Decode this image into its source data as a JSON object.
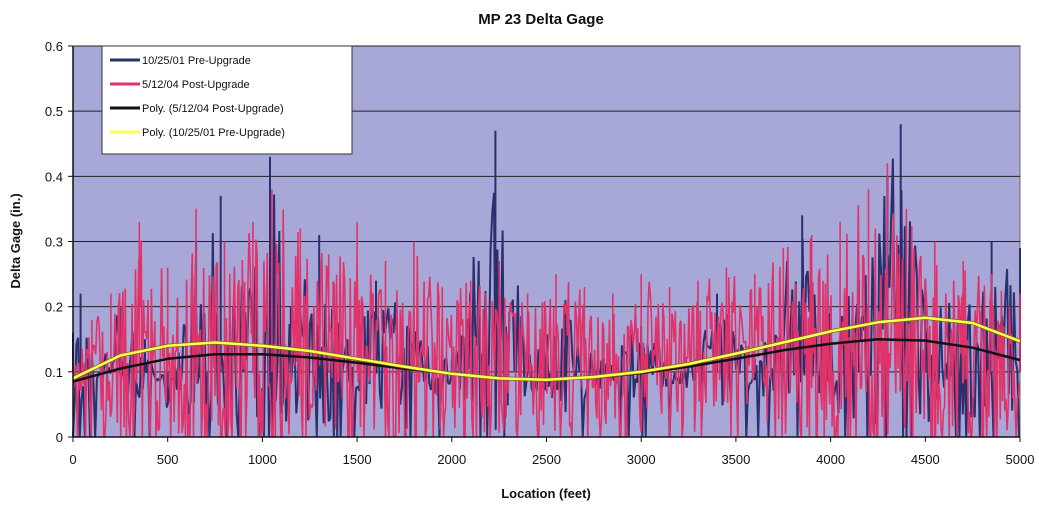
{
  "chart_data": {
    "type": "line",
    "title": "MP 23 Delta Gage",
    "xlabel": "Location (feet)",
    "ylabel": "Delta Gage (in.)",
    "xlim": [
      0,
      5000
    ],
    "ylim": [
      0,
      0.6
    ],
    "x_ticks": [
      "0",
      "500",
      "1000",
      "1500",
      "2000",
      "2500",
      "3000",
      "3500",
      "4000",
      "4500",
      "5000"
    ],
    "y_ticks": [
      "0",
      "0.1",
      "0.2",
      "0.3",
      "0.4",
      "0.5",
      "0.6"
    ],
    "grid": true,
    "legend_position": "top-left",
    "plot_background": "#a8a8d8",
    "series": [
      {
        "name": "10/25/01 Pre-Upgrade",
        "color": "#2a2f6e",
        "style": "raw",
        "x": [
          0,
          40,
          120,
          250,
          380,
          500,
          650,
          780,
          900,
          1040,
          1150,
          1300,
          1450,
          1600,
          1800,
          2000,
          2230,
          2400,
          2600,
          2800,
          3000,
          3200,
          3400,
          3600,
          3850,
          4000,
          4150,
          4300,
          4370,
          4500,
          4700,
          4850,
          5000
        ],
        "y": [
          0.16,
          0.22,
          0.1,
          0.2,
          0.15,
          0.05,
          0.3,
          0.37,
          0.22,
          0.43,
          0.2,
          0.31,
          0.15,
          0.24,
          0.18,
          0.12,
          0.47,
          0.14,
          0.21,
          0.12,
          0.17,
          0.1,
          0.22,
          0.12,
          0.34,
          0.2,
          0.24,
          0.4,
          0.48,
          0.24,
          0.22,
          0.3,
          0.29
        ]
      },
      {
        "name": "5/12/04 Post-Upgrade",
        "color": "#e0336a",
        "style": "raw",
        "x": [
          0,
          100,
          200,
          350,
          500,
          650,
          800,
          950,
          1050,
          1200,
          1350,
          1500,
          1650,
          1800,
          1950,
          2100,
          2250,
          2400,
          2550,
          2700,
          2850,
          3000,
          3150,
          3300,
          3450,
          3600,
          3750,
          3900,
          4050,
          4200,
          4300,
          4400,
          4550,
          4700,
          4850,
          5000
        ],
        "y": [
          0.12,
          0.18,
          0.22,
          0.33,
          0.26,
          0.35,
          0.3,
          0.33,
          0.38,
          0.32,
          0.28,
          0.33,
          0.27,
          0.3,
          0.23,
          0.24,
          0.27,
          0.22,
          0.25,
          0.23,
          0.22,
          0.25,
          0.23,
          0.24,
          0.26,
          0.25,
          0.29,
          0.31,
          0.33,
          0.38,
          0.42,
          0.35,
          0.3,
          0.27,
          0.25,
          0.22
        ]
      },
      {
        "name": "Poly. (5/12/04 Post-Upgrade)",
        "color": "#111111",
        "style": "trend",
        "x": [
          0,
          250,
          500,
          750,
          1000,
          1250,
          1500,
          1750,
          2000,
          2250,
          2500,
          2750,
          3000,
          3250,
          3500,
          3750,
          4000,
          4250,
          4500,
          4750,
          5000
        ],
        "y": [
          0.085,
          0.105,
          0.12,
          0.127,
          0.127,
          0.122,
          0.114,
          0.105,
          0.097,
          0.091,
          0.089,
          0.091,
          0.098,
          0.108,
          0.12,
          0.133,
          0.143,
          0.15,
          0.148,
          0.137,
          0.118
        ]
      },
      {
        "name": "Poly. (10/25/01 Pre-Upgrade)",
        "color": "#ffff55",
        "style": "trend",
        "x": [
          0,
          250,
          500,
          750,
          1000,
          1250,
          1500,
          1750,
          2000,
          2250,
          2500,
          2750,
          3000,
          3250,
          3500,
          3750,
          4000,
          4250,
          4500,
          4750,
          5000
        ],
        "y": [
          0.09,
          0.125,
          0.14,
          0.145,
          0.14,
          0.132,
          0.12,
          0.108,
          0.097,
          0.09,
          0.088,
          0.092,
          0.1,
          0.112,
          0.128,
          0.145,
          0.162,
          0.176,
          0.183,
          0.175,
          0.147
        ]
      }
    ]
  }
}
